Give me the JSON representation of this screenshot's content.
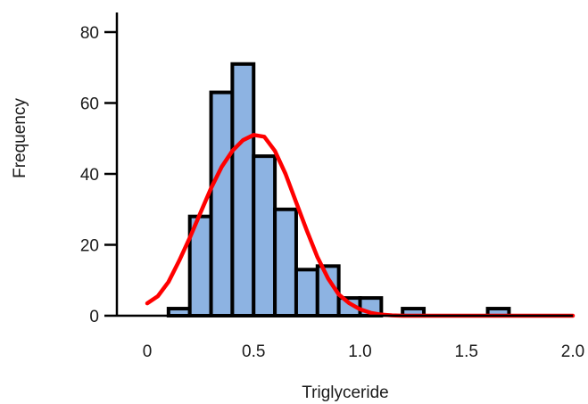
{
  "chart_data": {
    "type": "bar",
    "xlabel": "Triglyceride",
    "ylabel": "Frequency",
    "xlim": [
      0,
      2.0
    ],
    "ylim": [
      0,
      80
    ],
    "x_ticks": [
      {
        "value": 0,
        "label": "0"
      },
      {
        "value": 0.5,
        "label": "0.5"
      },
      {
        "value": 1.0,
        "label": "1.0"
      },
      {
        "value": 1.5,
        "label": "1.5"
      },
      {
        "value": 2.0,
        "label": "2.0"
      }
    ],
    "y_ticks": [
      {
        "value": 0,
        "label": "0"
      },
      {
        "value": 20,
        "label": "20"
      },
      {
        "value": 40,
        "label": "40"
      },
      {
        "value": 60,
        "label": "60"
      },
      {
        "value": 80,
        "label": "80"
      }
    ],
    "bin_width": 0.1,
    "bins": [
      {
        "x": 0.1,
        "value": 2
      },
      {
        "x": 0.2,
        "value": 28
      },
      {
        "x": 0.3,
        "value": 63
      },
      {
        "x": 0.4,
        "value": 71
      },
      {
        "x": 0.5,
        "value": 45
      },
      {
        "x": 0.6,
        "value": 30
      },
      {
        "x": 0.7,
        "value": 13
      },
      {
        "x": 0.8,
        "value": 14
      },
      {
        "x": 0.9,
        "value": 5
      },
      {
        "x": 1.0,
        "value": 5
      },
      {
        "x": 1.1,
        "value": 0
      },
      {
        "x": 1.2,
        "value": 2
      },
      {
        "x": 1.3,
        "value": 0
      },
      {
        "x": 1.4,
        "value": 0
      },
      {
        "x": 1.5,
        "value": 0
      },
      {
        "x": 1.6,
        "value": 2
      }
    ],
    "density_curve": [
      [
        0.0,
        3.5
      ],
      [
        0.05,
        5.5
      ],
      [
        0.1,
        9.5
      ],
      [
        0.15,
        15.5
      ],
      [
        0.2,
        22
      ],
      [
        0.25,
        29
      ],
      [
        0.3,
        36
      ],
      [
        0.35,
        42
      ],
      [
        0.4,
        46.5
      ],
      [
        0.45,
        49.5
      ],
      [
        0.5,
        51
      ],
      [
        0.55,
        50.5
      ],
      [
        0.6,
        46.5
      ],
      [
        0.65,
        40
      ],
      [
        0.7,
        32
      ],
      [
        0.75,
        24
      ],
      [
        0.8,
        16.5
      ],
      [
        0.85,
        10.5
      ],
      [
        0.9,
        6
      ],
      [
        0.95,
        3.5
      ],
      [
        1.0,
        1.8
      ],
      [
        1.05,
        0.8
      ],
      [
        1.1,
        0.3
      ],
      [
        1.15,
        0.1
      ],
      [
        1.2,
        0
      ],
      [
        1.4,
        0
      ],
      [
        1.6,
        0
      ],
      [
        1.8,
        0
      ],
      [
        2.0,
        0
      ]
    ],
    "colors": {
      "bar_fill": "#8db3e2",
      "bar_stroke": "#000000",
      "curve": "#ff0000",
      "axis": "#000000"
    },
    "grid": false
  }
}
